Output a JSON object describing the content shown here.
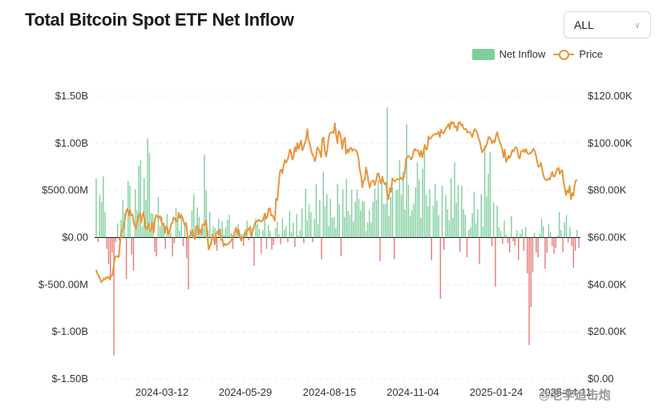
{
  "header": {
    "title": "Total Bitcoin Spot ETF Net Inflow"
  },
  "range_select": {
    "value": "ALL"
  },
  "legend": {
    "net_inflow": "Net Inflow",
    "price": "Price"
  },
  "watermark": "@老李追击炮",
  "colors": {
    "inflow_positive": "#7fcf9c",
    "inflow_negative": "#e47a7a",
    "price_line": "#e8963a",
    "grid": "#ececec"
  },
  "chart_data": {
    "type": "bar+line",
    "title": "Total Bitcoin Spot ETF Net Inflow",
    "left_axis": {
      "ticks": [
        "$1.50B",
        "$1.00B",
        "$500.00M",
        "$0.00",
        "$-500.00M",
        "$-1.00B",
        "$-1.50B"
      ],
      "range": [
        -1.5,
        1.5
      ],
      "unit": "B USD"
    },
    "right_axis": {
      "ticks": [
        "$120.00K",
        "$100.00K",
        "$80.00K",
        "$60.00K",
        "$40.00K",
        "$20.00K",
        "$0.00"
      ],
      "range": [
        0,
        120
      ],
      "unit": "K USD"
    },
    "x_ticks": [
      "2024-03-12",
      "2024-05-29",
      "2024-08-15",
      "2024-11-04",
      "2025-01-24",
      "2025-04-11"
    ],
    "grid": true,
    "legend_position": "top-right",
    "series": [
      {
        "name": "Net Inflow",
        "kind": "bar",
        "unit": "B",
        "values": [
          0.63,
          -0.05,
          0.45,
          0.38,
          0.65,
          0.27,
          -0.12,
          -0.28,
          -0.41,
          -0.16,
          -1.25,
          -0.05,
          0.15,
          -0.03,
          0.19,
          0.4,
          0.26,
          -0.44,
          0.6,
          0.55,
          -0.18,
          -0.35,
          0.51,
          0.29,
          0.76,
          0.82,
          0.12,
          0.63,
          0.4,
          1.05,
          0.9,
          0.26,
          0.25,
          -0.15,
          -0.2,
          0.43,
          0.12,
          0.22,
          0.16,
          -0.12,
          0.25,
          0.08,
          0.05,
          -0.2,
          -0.06,
          0.31,
          0.18,
          0.07,
          0.26,
          -0.09,
          0.15,
          -0.22,
          -0.55,
          0.08,
          0.29,
          0.46,
          0.12,
          0.32,
          0.22,
          0.07,
          0.1,
          0.88,
          0.5,
          0.08,
          0.27,
          -0.07,
          0.12,
          0.1,
          -0.14,
          0.2,
          0.09,
          0.17,
          0.03,
          0.11,
          0.19,
          0.24,
          0.05,
          -0.12,
          0.06,
          0.08,
          0.14,
          0.05,
          0.04,
          -0.09,
          0.09,
          0.18,
          -0.03,
          0.12,
          0.1,
          -0.3,
          0.2,
          0.14,
          0.09,
          -0.17,
          0.08,
          0.25,
          -0.12,
          0.13,
          0.07,
          -0.13,
          -0.08,
          0.1,
          0.17,
          0.04,
          -0.07,
          0.2,
          0.08,
          0.12,
          -0.05,
          0.28,
          0.06,
          0.16,
          -0.1,
          0.25,
          0.02,
          0.08,
          0.31,
          -0.06,
          0.52,
          0.18,
          0.35,
          0.27,
          -0.05,
          0.2,
          0.57,
          0.14,
          0.4,
          -0.23,
          0.7,
          0.33,
          0.46,
          0.12,
          0.41,
          0.21,
          0.22,
          0.1,
          0.57,
          0.35,
          -0.2,
          0.51,
          0.22,
          0.62,
          0.28,
          0.24,
          0.51,
          0.17,
          0.38,
          0.51,
          0.41,
          0.29,
          0.39,
          0.38,
          0.07,
          0.16,
          0.29,
          0.16,
          0.38,
          0.52,
          0.4,
          0.61,
          -0.25,
          0.57,
          0.36,
          0.35,
          1.38,
          0.23,
          0.43,
          0.53,
          -0.23,
          0.5,
          0.51,
          0.82,
          0.45,
          0.7,
          0.3,
          1.2,
          0.56,
          0.23,
          0.29,
          0.36,
          0.53,
          0.8,
          0.62,
          0.21,
          0.73,
          0.92,
          0.45,
          0.33,
          0.51,
          -0.24,
          0.34,
          0.57,
          0.39,
          0.24,
          -0.65,
          0.55,
          -0.13,
          0.45,
          0.3,
          0.18,
          0.63,
          0.21,
          0.8,
          0.37,
          0.56,
          -0.15,
          0.55,
          0.3,
          0.24,
          -0.21,
          0.08,
          0.11,
          0.26,
          0.48,
          0.15,
          0.3,
          -0.28,
          0.46,
          0.12,
          0.98,
          0.44,
          0.68,
          0.91,
          -0.09,
          0.37,
          -0.52,
          0.34,
          0.11,
          0.07,
          -0.07,
          0.18,
          0.03,
          -0.06,
          -0.16,
          0.23,
          -0.04,
          -0.09,
          0.08,
          -0.24,
          0.04,
          0.09,
          -0.14,
          0.11,
          -0.38,
          -1.14,
          -0.74,
          -0.37,
          0.05,
          -0.16,
          -0.21,
          0.04,
          0.2,
          0.12,
          -0.33,
          -0.16,
          0.14,
          0.06,
          -0.09,
          -0.17,
          -0.11,
          0.02,
          0.27,
          0.08,
          -0.15,
          0.16,
          0.24,
          -0.05,
          0.11,
          -0.09,
          -0.32,
          -0.14,
          0.08,
          -0.11
        ]
      },
      {
        "name": "Price",
        "kind": "line",
        "unit": "K",
        "values": [
          46.3,
          44.5,
          43.8,
          42.6,
          41.0,
          41.5,
          42.7,
          42.3,
          43.1,
          42.9,
          43.5,
          42.1,
          43.6,
          44.2,
          47.8,
          51.6,
          52.1,
          52.0,
          51.7,
          57.2,
          62.6,
          63.1,
          64.6,
          67.7,
          71.2,
          72.2,
          69.5,
          71.8,
          69.4,
          69.8,
          66.3,
          64.8,
          63.9,
          67.4,
          69.5,
          70.2,
          66.3,
          69.3,
          70.7,
          65.0,
          63.5,
          64.3,
          65.9,
          62.6,
          63.1,
          66.4,
          62.1,
          67.3,
          69.6,
          68.8,
          68.2,
          69.1,
          67.3,
          65.4,
          66.0,
          61.9,
          64.8,
          63.8,
          61.5,
          62.8,
          65.7,
          66.2,
          68.6,
          67.9,
          66.9,
          67.1,
          70.5,
          68.2,
          69.5,
          68.5,
          66.7,
          65.1,
          66.2,
          61.3,
          59.6,
          60.6,
          61.9,
          63.0,
          60.1,
          59.3,
          64.5,
          65.1,
          61.5,
          63.3,
          61.4,
          65.3,
          65.8,
          65.3,
          67.3,
          60.9,
          54.9,
          56.2,
          58.0,
          61.4,
          59.6,
          57.1,
          61.6,
          62.7,
          61.4,
          63.5,
          58.9,
          59.2,
          56.3,
          57.4,
          56.9,
          57.0,
          57.5,
          58.1,
          58.6,
          60.6,
          60.7,
          62.6,
          64.2,
          61.7,
          63.3,
          60.3,
          58.6,
          60.0,
          60.4,
          62.2,
          61.2,
          63.6,
          63.2,
          64.5,
          60.8,
          62.4,
          64.1,
          66.1,
          66.8,
          66.8,
          67.6,
          66.9,
          67.1,
          66.9,
          68.3,
          70.2,
          68.0,
          68.8,
          72.2,
          72.4,
          69.3,
          69.5,
          68.4,
          67.1,
          76.5,
          75.9,
          81.9,
          87.8,
          88.8,
          87.3,
          90.6,
          93.0,
          91.8,
          92.7,
          94.6,
          97.4,
          95.9,
          93.0,
          94.2,
          98.4,
          96.5,
          100.1,
          97.5,
          99.7,
          101.2,
          97.0,
          98.2,
          100.1,
          101.6,
          106.0,
          101.3,
          99.6,
          97.0,
          95.3,
          94.3,
          92.4,
          94.3,
          98.3,
          97.5,
          96.3,
          94.1,
          101.9,
          102.5,
          96.9,
          94.3,
          97.6,
          102.0,
          104.2,
          104.5,
          104.8,
          104.3,
          108.5,
          104.0,
          100.0,
          105.2,
          104.6,
          102.1,
          97.7,
          101.4,
          102.4,
          95.5,
          97.4,
          96.1,
          97.8,
          98.0,
          96.7,
          97.5,
          97.3,
          97.0,
          95.9,
          93.4,
          88.5,
          86.6,
          81.3,
          84.2,
          84.6,
          89.8,
          87.2,
          83.4,
          81.1,
          83.6,
          84.0,
          84.2,
          82.2,
          84.0,
          86.9,
          87.3,
          84.4,
          82.8,
          85.8,
          83.6,
          82.6,
          83.3,
          78.2,
          76.3,
          81.0,
          79.3,
          85.1,
          84.5,
          83.7,
          84.3,
          84.9,
          84.6,
          85.0,
          85.5,
          84.6,
          85.0,
          87.5,
          93.3,
          94.1,
          94.6,
          94.1,
          93.1,
          94.0,
          96.5,
          97.6,
          96.9,
          97.1,
          96.7,
          94.3,
          96.9,
          94.0,
          96.7,
          99.3,
          97.3,
          97.5,
          103.0,
          101.8,
          102.2,
          103.1,
          103.6,
          104.1,
          103.7,
          104.1,
          104.9,
          102.6,
          105.8,
          104.6,
          104.2,
          105.3,
          106.6,
          106.9,
          108.3,
          106.1,
          109.2,
          108.3,
          108.9,
          106.8,
          107.2,
          105.3,
          108.7,
          109.0,
          107.6,
          108.1,
          106.3,
          105.9,
          106.1,
          104.5,
          104.8,
          104.7,
          103.9,
          102.6,
          104.7,
          106.0,
          105.4,
          104.4,
          102.2,
          100.9,
          97.9,
          96.1,
          97.4,
          97.9,
          98.5,
          100.2,
          102.6,
          102.5,
          101.4,
          99.9,
          101.2,
          100.4,
          103.2,
          104.7,
          102.1,
          100.6,
          99.3,
          97.4,
          94.1,
          97.3,
          92.1,
          93.2,
          94.7,
          93.7,
          95.0,
          97.1,
          96.5,
          97.8,
          98.4,
          97.3,
          94.2,
          93.5,
          96.5,
          96.6,
          97.3,
          96.2,
          97.5,
          95.8,
          95.4,
          95.9,
          95.7,
          96.8,
          97.7,
          96.5,
          94.7,
          92.1,
          90.0,
          90.4,
          91.7,
          88.8,
          86.2,
          84.8,
          84.4,
          84.4,
          85.1,
          84.6,
          86.2,
          87.8,
          85.9,
          86.0,
          87.6,
          89.0,
          89.6,
          87.0,
          88.2,
          88.6,
          83.7,
          81.4,
          78.0,
          80.0,
          79.1,
          81.9,
          76.3,
          78.9,
          77.7,
          82.6,
          84.3,
          84.4
        ]
      }
    ]
  }
}
